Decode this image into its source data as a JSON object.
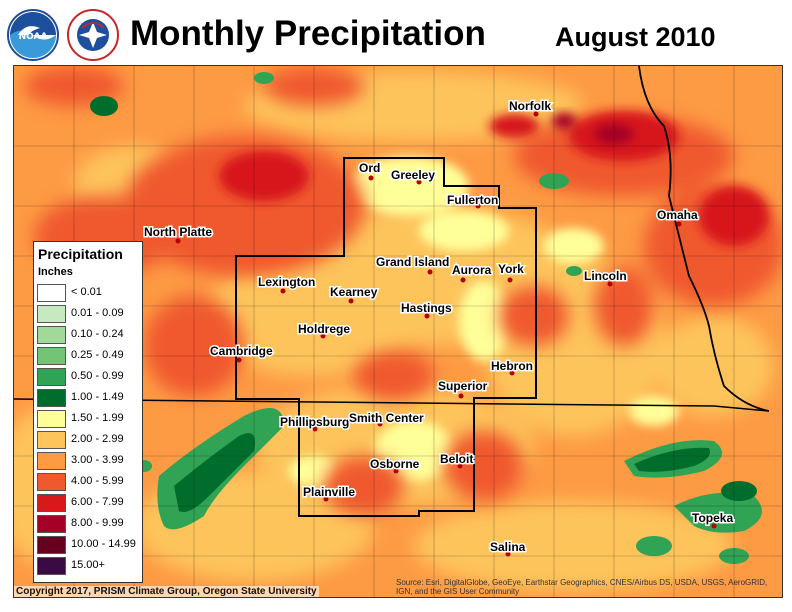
{
  "header": {
    "title": "Monthly Precipitation",
    "date": "August 2010",
    "logos": [
      {
        "name": "noaa-logo",
        "text": "NOAA"
      },
      {
        "name": "nws-logo",
        "text": "NATIONAL WEATHER SERVICE"
      }
    ]
  },
  "legend": {
    "title": "Precipitation",
    "units": "Inches",
    "items": [
      {
        "label": "< 0.01",
        "color": "#ffffff"
      },
      {
        "label": "0.01 - 0.09",
        "color": "#c7e9c0"
      },
      {
        "label": "0.10 - 0.24",
        "color": "#a1d99b"
      },
      {
        "label": "0.25 - 0.49",
        "color": "#74c476"
      },
      {
        "label": "0.50 - 0.99",
        "color": "#31a354"
      },
      {
        "label": "1.00 - 1.49",
        "color": "#006d2c"
      },
      {
        "label": "1.50 - 1.99",
        "color": "#ffff99"
      },
      {
        "label": "2.00 - 2.99",
        "color": "#fdc45c"
      },
      {
        "label": "3.00 - 3.99",
        "color": "#fd9a44"
      },
      {
        "label": "4.00 - 5.99",
        "color": "#f0582d"
      },
      {
        "label": "6.00 - 7.99",
        "color": "#d7191c"
      },
      {
        "label": "8.00 - 9.99",
        "color": "#a50026"
      },
      {
        "label": "10.00 - 14.99",
        "color": "#67001f"
      },
      {
        "label": "15.00+",
        "color": "#3b0a45"
      }
    ]
  },
  "cities": [
    "Norfolk",
    "Ord",
    "Greeley",
    "Fullerton",
    "North Platte",
    "Omaha",
    "Grand Island",
    "Aurora",
    "York",
    "Lexington",
    "Kearney",
    "Lincoln",
    "Hastings",
    "Holdrege",
    "Cambridge",
    "Hebron",
    "Superior",
    "Phillipsburg",
    "Smith Center",
    "Osborne",
    "Beloit",
    "Plainville",
    "Topeka",
    "Salina"
  ],
  "footer": {
    "copyright": "Copyright 2017, PRISM Climate Group, Oregon State University",
    "credit": "Source: Esri, DigitalGlobe, GeoEye, Earthstar Geographics, CNES/Airbus DS, USDA, USGS, AeroGRID, IGN, and the GIS User Community"
  }
}
